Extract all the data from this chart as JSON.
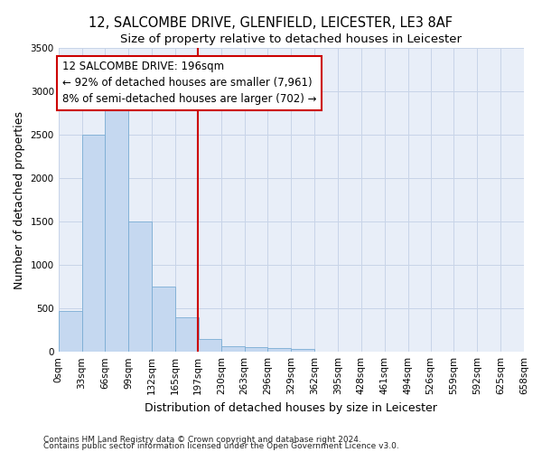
{
  "title_line1": "12, SALCOMBE DRIVE, GLENFIELD, LEICESTER, LE3 8AF",
  "title_line2": "Size of property relative to detached houses in Leicester",
  "xlabel": "Distribution of detached houses by size in Leicester",
  "ylabel": "Number of detached properties",
  "bar_color": "#c5d8f0",
  "bar_edge_color": "#7aadd4",
  "background_color": "#e8eef8",
  "annotation_text": "12 SALCOMBE DRIVE: 196sqm\n← 92% of detached houses are smaller (7,961)\n8% of semi-detached houses are larger (702) →",
  "vline_color": "#cc0000",
  "ylim": [
    0,
    3500
  ],
  "yticks": [
    0,
    500,
    1000,
    1500,
    2000,
    2500,
    3000,
    3500
  ],
  "bins_start": [
    0,
    33,
    66,
    99,
    132,
    165,
    197,
    230,
    263,
    296,
    329,
    362,
    395,
    428,
    461,
    494,
    526,
    559,
    592,
    625
  ],
  "bin_width": 33,
  "bar_heights": [
    475,
    2500,
    2800,
    1500,
    750,
    400,
    150,
    60,
    50,
    40,
    30,
    0,
    0,
    0,
    0,
    0,
    0,
    0,
    0,
    0
  ],
  "tick_labels": [
    "0sqm",
    "33sqm",
    "66sqm",
    "99sqm",
    "132sqm",
    "165sqm",
    "197sqm",
    "230sqm",
    "263sqm",
    "296sqm",
    "329sqm",
    "362sqm",
    "395sqm",
    "428sqm",
    "461sqm",
    "494sqm",
    "526sqm",
    "559sqm",
    "592sqm",
    "625sqm",
    "658sqm"
  ],
  "footnote1": "Contains HM Land Registry data © Crown copyright and database right 2024.",
  "footnote2": "Contains public sector information licensed under the Open Government Licence v3.0.",
  "grid_color": "#c8d4e8",
  "title_fontsize": 10.5,
  "subtitle_fontsize": 9.5,
  "axis_label_fontsize": 9,
  "tick_fontsize": 7.5,
  "annot_fontsize": 8.5,
  "footnote_fontsize": 6.5
}
